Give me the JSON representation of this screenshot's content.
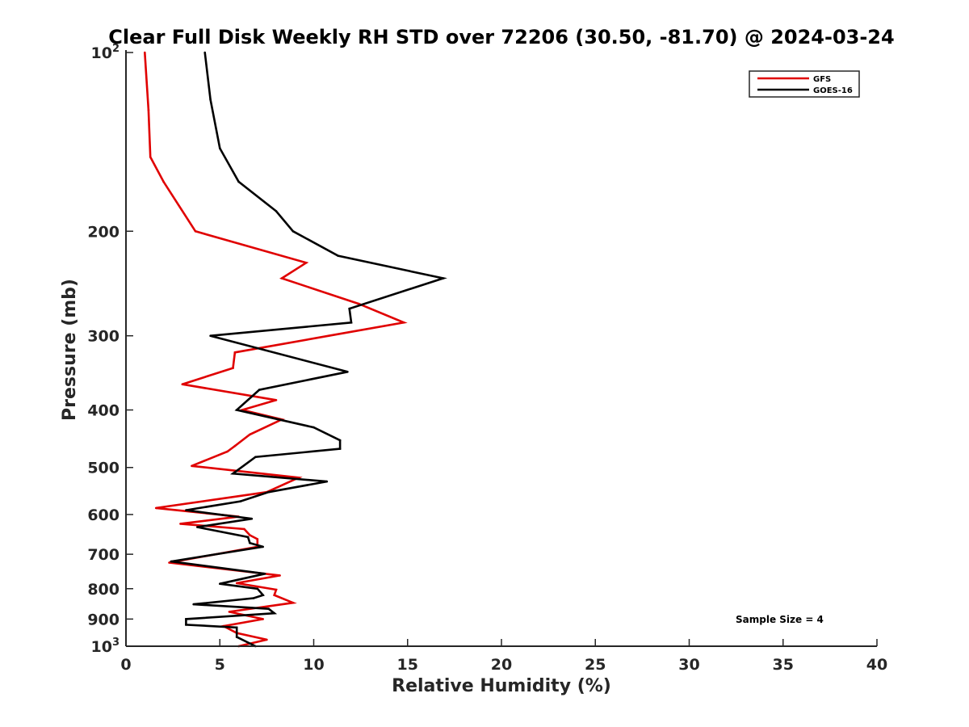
{
  "chart_data": {
    "type": "line",
    "title": "Clear Full Disk Weekly RH STD over 72206 (30.50, -81.70) @ 2024-03-24",
    "xlabel": "Relative Humidity (%)",
    "ylabel": "Pressure (mb)",
    "xlim": [
      0,
      40
    ],
    "ylim": [
      100,
      1000
    ],
    "yscale": "log",
    "y_reversed": true,
    "grid": false,
    "legend_position": "top-right",
    "x_ticks": [
      "0",
      "5",
      "10",
      "15",
      "20",
      "25",
      "30",
      "35",
      "40"
    ],
    "y_ticks": [
      {
        "value": 100,
        "base": "10",
        "exp": "2"
      },
      {
        "value": 200,
        "label": "200"
      },
      {
        "value": 300,
        "label": "300"
      },
      {
        "value": 400,
        "label": "400"
      },
      {
        "value": 500,
        "label": "500"
      },
      {
        "value": 600,
        "label": "600"
      },
      {
        "value": 700,
        "label": "700"
      },
      {
        "value": 800,
        "label": "800"
      },
      {
        "value": 900,
        "label": "900"
      },
      {
        "value": 1000,
        "base": "10",
        "exp": "3"
      }
    ],
    "annotation": "Sample Size = 4",
    "series": [
      {
        "name": "GFS",
        "color": "#e00000",
        "points": [
          [
            1.0,
            100
          ],
          [
            1.2,
            125
          ],
          [
            1.3,
            150
          ],
          [
            2.0,
            165
          ],
          [
            3.7,
            200
          ],
          [
            9.6,
            226
          ],
          [
            8.3,
            240
          ],
          [
            12.4,
            265
          ],
          [
            14.8,
            285
          ],
          [
            10.8,
            300
          ],
          [
            5.8,
            320
          ],
          [
            5.7,
            340
          ],
          [
            3.0,
            362
          ],
          [
            8.0,
            385
          ],
          [
            6.2,
            400
          ],
          [
            8.3,
            415
          ],
          [
            6.6,
            440
          ],
          [
            5.8,
            460
          ],
          [
            5.4,
            470
          ],
          [
            3.5,
            497
          ],
          [
            9.2,
            520
          ],
          [
            7.5,
            550
          ],
          [
            1.6,
            585
          ],
          [
            6.0,
            605
          ],
          [
            2.9,
            622
          ],
          [
            6.3,
            635
          ],
          [
            6.6,
            650
          ],
          [
            7.0,
            660
          ],
          [
            7.0,
            680
          ],
          [
            2.3,
            723
          ],
          [
            8.2,
            760
          ],
          [
            5.9,
            783
          ],
          [
            8.0,
            803
          ],
          [
            7.9,
            820
          ],
          [
            8.9,
            845
          ],
          [
            5.5,
            875
          ],
          [
            7.3,
            900
          ],
          [
            5.2,
            925
          ],
          [
            5.9,
            950
          ],
          [
            7.5,
            975
          ],
          [
            6.0,
            1000
          ]
        ]
      },
      {
        "name": "GOES-16",
        "color": "#000000",
        "points": [
          [
            4.2,
            100
          ],
          [
            4.5,
            120
          ],
          [
            5.0,
            145
          ],
          [
            6.0,
            165
          ],
          [
            8.0,
            185
          ],
          [
            8.9,
            200
          ],
          [
            11.3,
            220
          ],
          [
            16.9,
            240
          ],
          [
            11.9,
            270
          ],
          [
            12.0,
            285
          ],
          [
            4.5,
            300
          ],
          [
            11.8,
            345
          ],
          [
            7.1,
            370
          ],
          [
            5.9,
            400
          ],
          [
            10.0,
            428
          ],
          [
            11.4,
            450
          ],
          [
            11.4,
            465
          ],
          [
            6.9,
            480
          ],
          [
            5.7,
            512
          ],
          [
            10.7,
            528
          ],
          [
            7.6,
            550
          ],
          [
            6.1,
            570
          ],
          [
            3.2,
            590
          ],
          [
            6.7,
            610
          ],
          [
            3.8,
            630
          ],
          [
            6.5,
            655
          ],
          [
            6.6,
            670
          ],
          [
            7.3,
            680
          ],
          [
            2.4,
            720
          ],
          [
            7.4,
            755
          ],
          [
            5.0,
            785
          ],
          [
            7.0,
            800
          ],
          [
            7.3,
            820
          ],
          [
            6.8,
            830
          ],
          [
            3.6,
            850
          ],
          [
            7.6,
            865
          ],
          [
            7.9,
            880
          ],
          [
            3.2,
            900
          ],
          [
            3.2,
            920
          ],
          [
            5.9,
            930
          ],
          [
            5.9,
            965
          ],
          [
            6.9,
            1000
          ]
        ]
      }
    ]
  }
}
